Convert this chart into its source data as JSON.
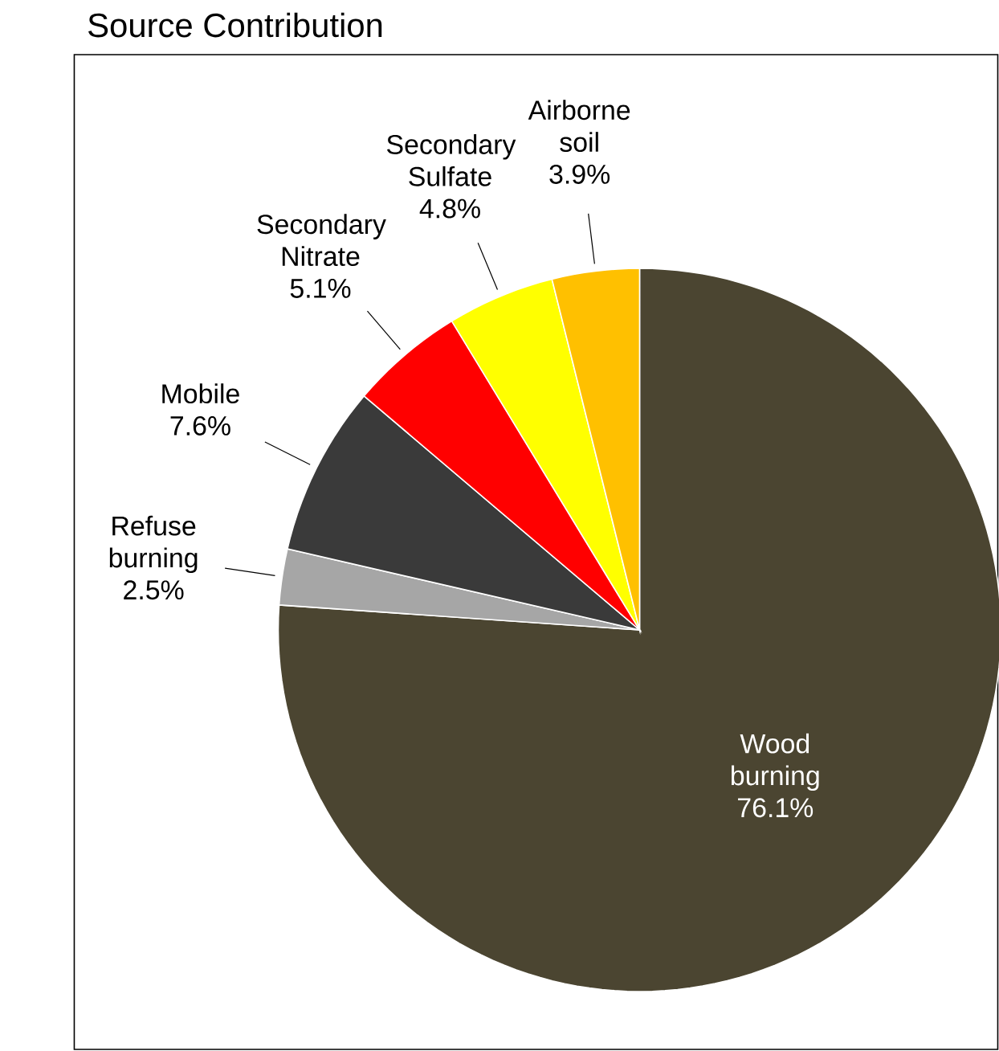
{
  "chart_data": {
    "type": "pie",
    "title": "Source Contribution",
    "categories": [
      "Wood burning",
      "Refuse burning",
      "Mobile",
      "Secondary Nitrate",
      "Secondary Sulfate",
      "Airborne soil"
    ],
    "values": [
      76.1,
      2.5,
      7.6,
      5.1,
      4.8,
      3.9
    ],
    "value_labels": [
      "76.1%",
      "2.5%",
      "7.6%",
      "5.1%",
      "4.8%",
      "3.9%"
    ],
    "colors": [
      "#4b4531",
      "#a6a6a6",
      "#3a3a3a",
      "#ff0000",
      "#ffff00",
      "#ffc000"
    ]
  }
}
